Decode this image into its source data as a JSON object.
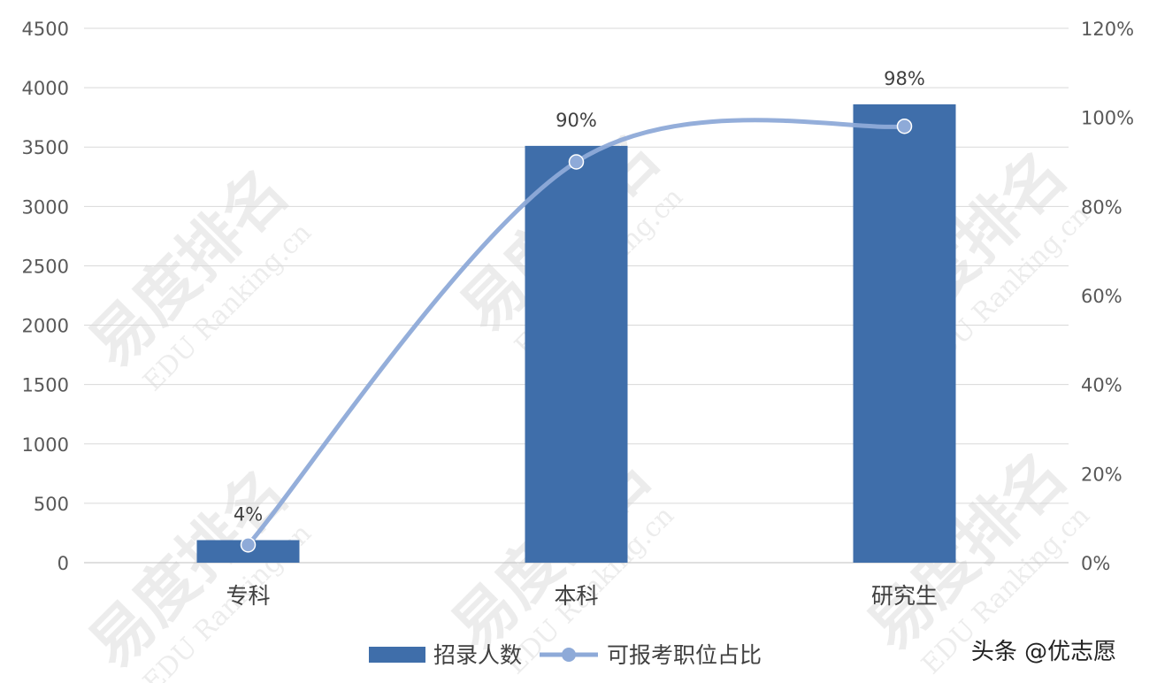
{
  "watermarks": {
    "cn": "易度排名",
    "en": "EDU Ranking.cn",
    "signature": "头条 @优志愿"
  },
  "chart_data": {
    "type": "bar",
    "categories": [
      "专科",
      "本科",
      "研究生"
    ],
    "series": [
      {
        "name": "招录人数",
        "type": "bar",
        "axis": "left",
        "values": [
          190,
          3510,
          3860
        ],
        "color": "#3f6eaa"
      },
      {
        "name": "可报考职位占比",
        "type": "line",
        "axis": "right",
        "values": [
          4,
          90,
          98
        ],
        "labels": [
          "4%",
          "90%",
          "98%"
        ],
        "color": "#8eaad8",
        "smooth": true,
        "markers": true
      }
    ],
    "y_left": {
      "min": 0,
      "max": 4500,
      "ticks": [
        "0",
        "500",
        "1000",
        "1500",
        "2000",
        "2500",
        "3000",
        "3500",
        "4000",
        "4500"
      ]
    },
    "y_right": {
      "min": 0,
      "max": 120,
      "ticks": [
        "0%",
        "20%",
        "40%",
        "60%",
        "80%",
        "100%",
        "120%"
      ]
    },
    "grid": true,
    "legend_position": "bottom"
  }
}
